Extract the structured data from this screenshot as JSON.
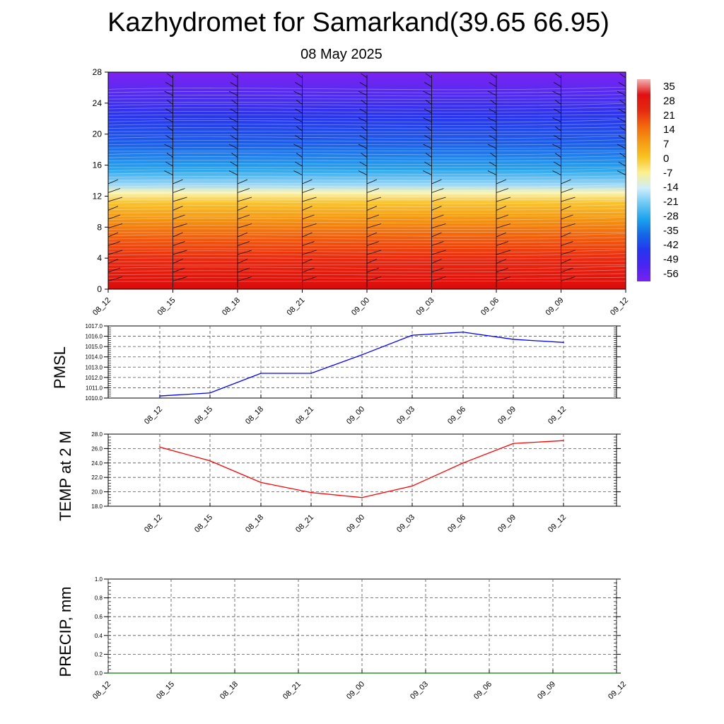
{
  "page": {
    "title": "Kazhydromet for Samarkand(39.65 66.95)",
    "subtitle": "08 May 2025"
  },
  "chart_data": [
    {
      "type": "heatmap",
      "name": "vertical-cross-section",
      "title": "",
      "xlabel": "",
      "ylabel": "",
      "y_ticks": [
        0,
        4,
        8,
        12,
        16,
        20,
        24,
        28
      ],
      "ylim": [
        0,
        28
      ],
      "x_ticks": [
        "08_12",
        "08_15",
        "08_18",
        "08_21",
        "09_00",
        "09_03",
        "09_06",
        "09_09",
        "09_12"
      ],
      "colorbar": {
        "labels": [
          "35",
          "28",
          "21",
          "14",
          "7",
          "0",
          "-7",
          "-14",
          "-21",
          "-28",
          "-35",
          "-42",
          "-49",
          "-56"
        ],
        "colors": [
          "#f6b3b3",
          "#e01010",
          "#e42a10",
          "#f4670c",
          "#f59a12",
          "#f7c320",
          "#fbf08e",
          "#cfeefb",
          "#6bc8f4",
          "#1aa3ec",
          "#1467e6",
          "#2535f0",
          "#4a24f2",
          "#7a22f0"
        ]
      },
      "layer_colors_top_to_bottom": [
        "#7d22f2",
        "#2a34ee",
        "#1c5fe8",
        "#28a6ec",
        "#9ed8f6",
        "#fbf5b6",
        "#f9c42e",
        "#f39412",
        "#f2590c",
        "#ea2a10",
        "#dc0a0a"
      ],
      "wind_barbs": true,
      "grid": false
    },
    {
      "type": "line",
      "name": "pmsl",
      "title": "",
      "ylabel": "PMSL",
      "xlabel": "",
      "x": [
        "08_12",
        "08_15",
        "08_18",
        "08_21",
        "09_00",
        "09_03",
        "09_06",
        "09_09",
        "09_12"
      ],
      "series": [
        {
          "values": [
            1010.2,
            1010.5,
            1012.4,
            1012.4,
            1014.2,
            1016.1,
            1016.4,
            1015.7,
            1015.4
          ],
          "color": "#0000ff"
        }
      ],
      "y_ticks": [
        "1010.0",
        "1011.0",
        "1012.0",
        "1013.0",
        "1014.0",
        "1015.0",
        "1016.0",
        "1017.0"
      ],
      "ylim": [
        1010,
        1017
      ],
      "grid": true
    },
    {
      "type": "line",
      "name": "temp-2m",
      "title": "",
      "ylabel": "TEMP at 2 M",
      "xlabel": "",
      "x": [
        "08_12",
        "08_15",
        "08_18",
        "08_21",
        "09_00",
        "09_03",
        "09_06",
        "09_09",
        "09_12"
      ],
      "series": [
        {
          "values": [
            26.2,
            24.3,
            21.3,
            19.9,
            19.2,
            20.8,
            24.0,
            26.7,
            27.1
          ],
          "color": "#ff0000"
        }
      ],
      "y_ticks": [
        "18.0",
        "20.0",
        "22.0",
        "24.0",
        "26.0",
        "28.0"
      ],
      "ylim": [
        18,
        28
      ],
      "grid": true
    },
    {
      "type": "line",
      "name": "precip",
      "title": "",
      "ylabel": "PRECIP, mm",
      "xlabel": "",
      "x": [
        "08_12",
        "08_15",
        "08_18",
        "08_21",
        "09_00",
        "09_03",
        "09_06",
        "09_09",
        "09_12"
      ],
      "series": [
        {
          "values": [
            0,
            0,
            0,
            0,
            0,
            0,
            0,
            0,
            0
          ],
          "color": "#008000"
        }
      ],
      "y_ticks": [
        "0.0",
        "0.2",
        "0.4",
        "0.6",
        "0.8",
        "1.0"
      ],
      "ylim": [
        0,
        1
      ],
      "grid": true
    }
  ]
}
